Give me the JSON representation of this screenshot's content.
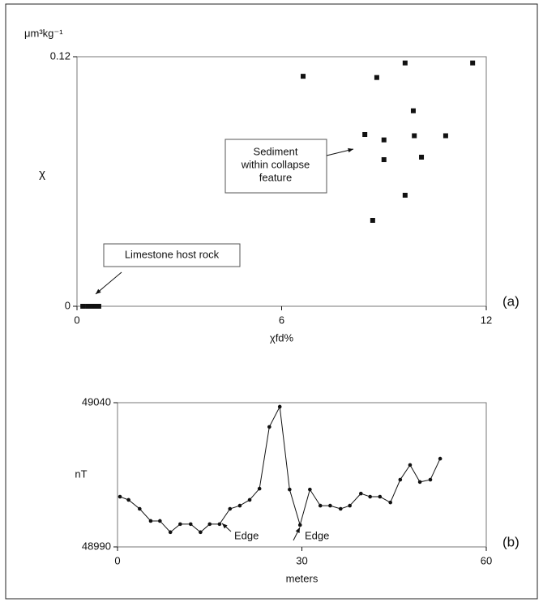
{
  "chart_data": [
    {
      "type": "scatter",
      "panel": "(a)",
      "y_unit": "μm³kg⁻¹",
      "ylabel": "χ",
      "xlabel": "χfd%",
      "x": [
        6.63,
        9.62,
        11.6,
        8.79,
        9.86,
        8.44,
        9.89,
        10.81,
        9.0,
        10.1,
        9.0,
        9.62,
        8.67,
        0.17,
        0.31,
        0.4,
        0.5,
        0.55,
        0.64
      ],
      "values": [
        0.1106,
        0.117,
        0.117,
        0.11,
        0.094,
        0.0826,
        0.082,
        0.082,
        0.08,
        0.0717,
        0.0705,
        0.0534,
        0.0413,
        0,
        0,
        0,
        0,
        0,
        0
      ],
      "color": "#111111",
      "xlim": [
        0,
        12
      ],
      "xticks": [
        0,
        6,
        12
      ],
      "ylim": [
        0,
        0.12
      ],
      "yticks": [
        0,
        0.12
      ],
      "annotations": [
        [
          "Sediment",
          "within collapse",
          "feature"
        ],
        [
          "Limestone host rock"
        ]
      ]
    },
    {
      "type": "line",
      "panel": "(b)",
      "ylabel": "nT",
      "xlabel": "meters",
      "x": [
        0.4,
        1.8,
        3.6,
        5.4,
        6.9,
        8.6,
        10.2,
        11.9,
        13.5,
        15.0,
        16.6,
        18.3,
        19.9,
        21.5,
        23.1,
        24.7,
        26.4,
        28.0,
        29.7,
        31.3,
        33.0,
        34.6,
        36.3,
        37.8,
        39.6,
        41.1,
        42.7,
        44.4,
        46.0,
        47.6,
        49.2,
        50.9,
        52.5
      ],
      "values": [
        49007.4,
        49006.3,
        49003.2,
        48999.0,
        48999.0,
        48995.1,
        48997.9,
        48997.9,
        48995.1,
        48997.9,
        48997.9,
        49003.2,
        49004.3,
        49006.3,
        49010.2,
        49031.6,
        49038.6,
        49009.9,
        48997.6,
        49009.9,
        49004.3,
        49004.3,
        49003.2,
        49004.3,
        49008.5,
        49007.4,
        49007.4,
        49005.4,
        49013.3,
        49018.4,
        49012.5,
        49013.3,
        49020.6
      ],
      "color": "#111111",
      "xlim": [
        0,
        60
      ],
      "xticks": [
        0,
        30,
        60
      ],
      "ylim": [
        48990,
        49040
      ],
      "yticks": [
        48990,
        49040
      ],
      "annotations": [
        [
          "Edge"
        ],
        [
          "Edge"
        ]
      ]
    }
  ]
}
